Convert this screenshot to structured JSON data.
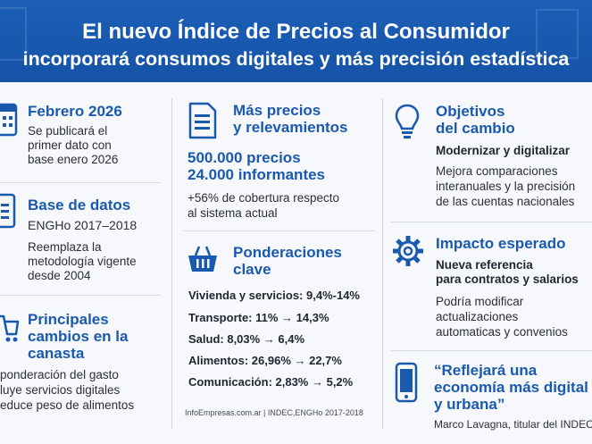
{
  "header": {
    "title_line1": "El nuevo Índice de Precios al Consumidor",
    "title_line2": "incorporará consumos digitales y más precisión estadística"
  },
  "col1": {
    "febrero": {
      "title": "Febrero 2026",
      "lines": [
        "Se publicará el",
        "primer dato con",
        "base enero 2026"
      ]
    },
    "base": {
      "title": "Base de datos",
      "subtitle": "ENGHo 2017–2018",
      "lines": [
        "Reemplaza la",
        "metodología vigente",
        "desde 2004"
      ]
    },
    "cambios": {
      "title_lines": [
        "Principales",
        "cambios en la",
        "canasta"
      ],
      "lines": [
        "ponderación del gasto",
        "luye servicios digitales",
        "educe peso de alimentos"
      ]
    }
  },
  "col2": {
    "precios": {
      "title_lines": [
        "Más precios",
        "y relevamientos"
      ],
      "big_lines": [
        "500.000 precios",
        "24.000 informantes"
      ],
      "lines": [
        "+56% de cobertura respecto",
        "al sistema actual"
      ]
    },
    "ponderaciones": {
      "title_lines": [
        "Ponderaciones",
        "clave"
      ],
      "items": [
        "Vivienda y servicios: 9,4%-14%",
        "Transporte: 11% → 14,3%",
        "Salud: 8,03% → 6,4%",
        "Alimentos: 26,96% → 22,7%",
        "Comunicación: 2,83% → 5,2%"
      ]
    },
    "footer": "InfoEmpresas.com.ar | INDEC,ENGHo 2017-2018"
  },
  "col3": {
    "objetivos": {
      "title_lines": [
        "Objetivos",
        "del cambio"
      ],
      "subtitle": "Modernizar y digitalizar",
      "lines": [
        "Mejora comparaciones",
        "interanuales y la precisión",
        "de las cuentas nacionales"
      ]
    },
    "impacto": {
      "title": "Impacto esperado",
      "bold_lines": [
        "Nueva referencia",
        "para contratos y salarios"
      ],
      "lines": [
        "Podría modificar",
        "actualizaciones",
        "automaticas y convenios"
      ]
    },
    "quote": {
      "title_lines": [
        "“Reflejará una",
        "economía más digital",
        "y urbana”"
      ],
      "author": "Marco Lavagna, titular del INDEC"
    }
  },
  "colors": {
    "header_blue": "#1c5fb8",
    "accent_blue": "#1a5aae",
    "text_dark": "#1f2530"
  },
  "icons": [
    "calendar-icon",
    "database-icon",
    "cart-icon",
    "document-icon",
    "basket-icon",
    "lightbulb-icon",
    "gear-icon",
    "phone-icon"
  ]
}
